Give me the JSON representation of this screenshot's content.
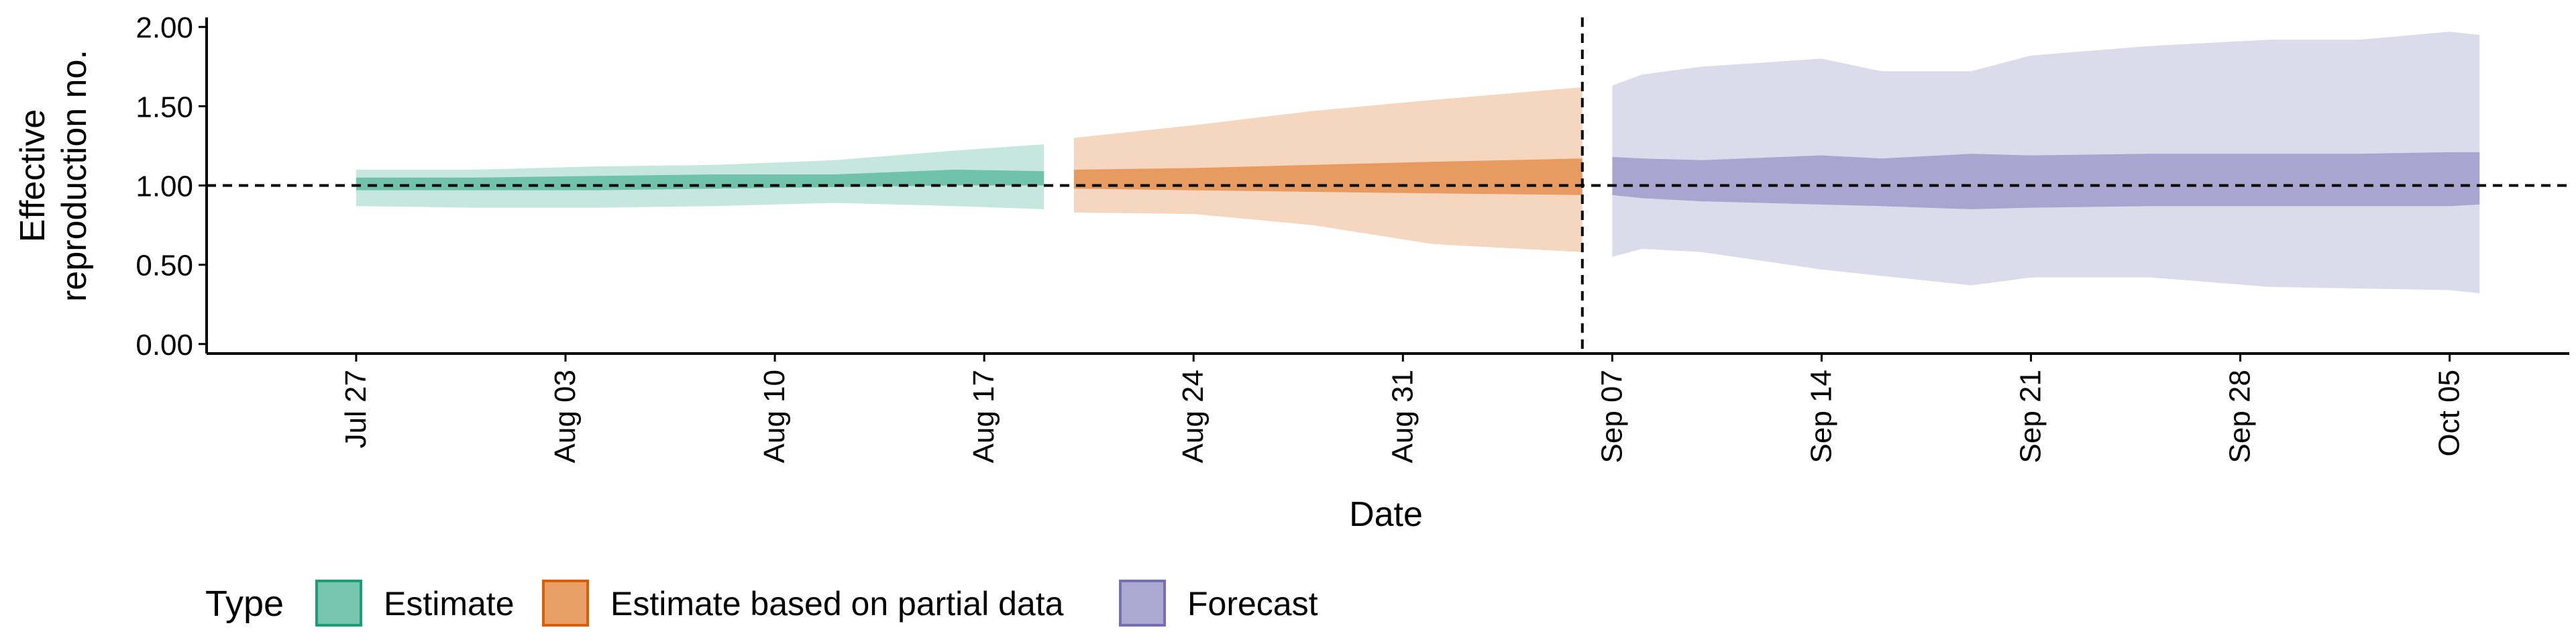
{
  "chart_data": {
    "type": "area",
    "title": "",
    "xlabel": "Date",
    "ylabel_lines": [
      "Effective",
      "reproduction no."
    ],
    "xlim": [
      "2020-07-22",
      "2020-10-09"
    ],
    "ylim": [
      -0.06,
      2.06
    ],
    "yticks": [
      0,
      0.5,
      1,
      1.5,
      2
    ],
    "ytick_labels": [
      "0.00",
      "0.50",
      "1.00",
      "1.50",
      "2.00"
    ],
    "xticks": [
      "2020-07-27",
      "2020-08-03",
      "2020-08-10",
      "2020-08-17",
      "2020-08-24",
      "2020-08-31",
      "2020-09-07",
      "2020-09-14",
      "2020-09-21",
      "2020-09-28",
      "2020-10-05"
    ],
    "xtick_labels": [
      "Jul 27",
      "Aug 03",
      "Aug 10",
      "Aug 17",
      "Aug 24",
      "Aug 31",
      "Sep 07",
      "Sep 14",
      "Sep 21",
      "Sep 28",
      "Oct 05"
    ],
    "reference_line_y": 1.0,
    "reference_line_x": "2020-09-06",
    "legend": {
      "title": "Type",
      "position": "bottom-left"
    },
    "series": [
      {
        "name": "Estimate",
        "color": "#1b9e77",
        "x": [
          "2020-07-27",
          "2020-07-31",
          "2020-08-04",
          "2020-08-08",
          "2020-08-12",
          "2020-08-16",
          "2020-08-19"
        ],
        "outer_upper": [
          1.1,
          1.1,
          1.12,
          1.13,
          1.16,
          1.22,
          1.26
        ],
        "outer_lower": [
          0.87,
          0.86,
          0.86,
          0.87,
          0.89,
          0.87,
          0.85
        ],
        "inner_upper": [
          1.05,
          1.05,
          1.06,
          1.07,
          1.07,
          1.1,
          1.09
        ],
        "inner_lower": [
          0.97,
          0.97,
          0.97,
          0.98,
          0.99,
          1.0,
          1.0
        ]
      },
      {
        "name": "Estimate based on partial data",
        "color": "#d95f02",
        "x": [
          "2020-08-20",
          "2020-08-24",
          "2020-08-28",
          "2020-09-01",
          "2020-09-06"
        ],
        "outer_upper": [
          1.3,
          1.38,
          1.47,
          1.54,
          1.62
        ],
        "outer_lower": [
          0.83,
          0.82,
          0.75,
          0.63,
          0.58
        ],
        "inner_upper": [
          1.1,
          1.11,
          1.13,
          1.15,
          1.17
        ],
        "inner_lower": [
          0.98,
          0.97,
          0.96,
          0.95,
          0.94
        ]
      },
      {
        "name": "Forecast",
        "color": "#7570b3",
        "x": [
          "2020-09-07",
          "2020-09-08",
          "2020-09-10",
          "2020-09-14",
          "2020-09-16",
          "2020-09-19",
          "2020-09-21",
          "2020-09-25",
          "2020-09-29",
          "2020-10-02",
          "2020-10-05",
          "2020-10-06"
        ],
        "outer_upper": [
          1.63,
          1.7,
          1.75,
          1.8,
          1.72,
          1.72,
          1.82,
          1.88,
          1.92,
          1.92,
          1.97,
          1.95
        ],
        "outer_lower": [
          0.55,
          0.6,
          0.58,
          0.47,
          0.43,
          0.37,
          0.42,
          0.42,
          0.36,
          0.35,
          0.34,
          0.32
        ],
        "inner_upper": [
          1.18,
          1.17,
          1.16,
          1.19,
          1.17,
          1.2,
          1.19,
          1.2,
          1.2,
          1.2,
          1.21,
          1.21
        ],
        "inner_lower": [
          0.94,
          0.92,
          0.9,
          0.88,
          0.87,
          0.85,
          0.86,
          0.87,
          0.87,
          0.87,
          0.87,
          0.88
        ]
      }
    ]
  }
}
